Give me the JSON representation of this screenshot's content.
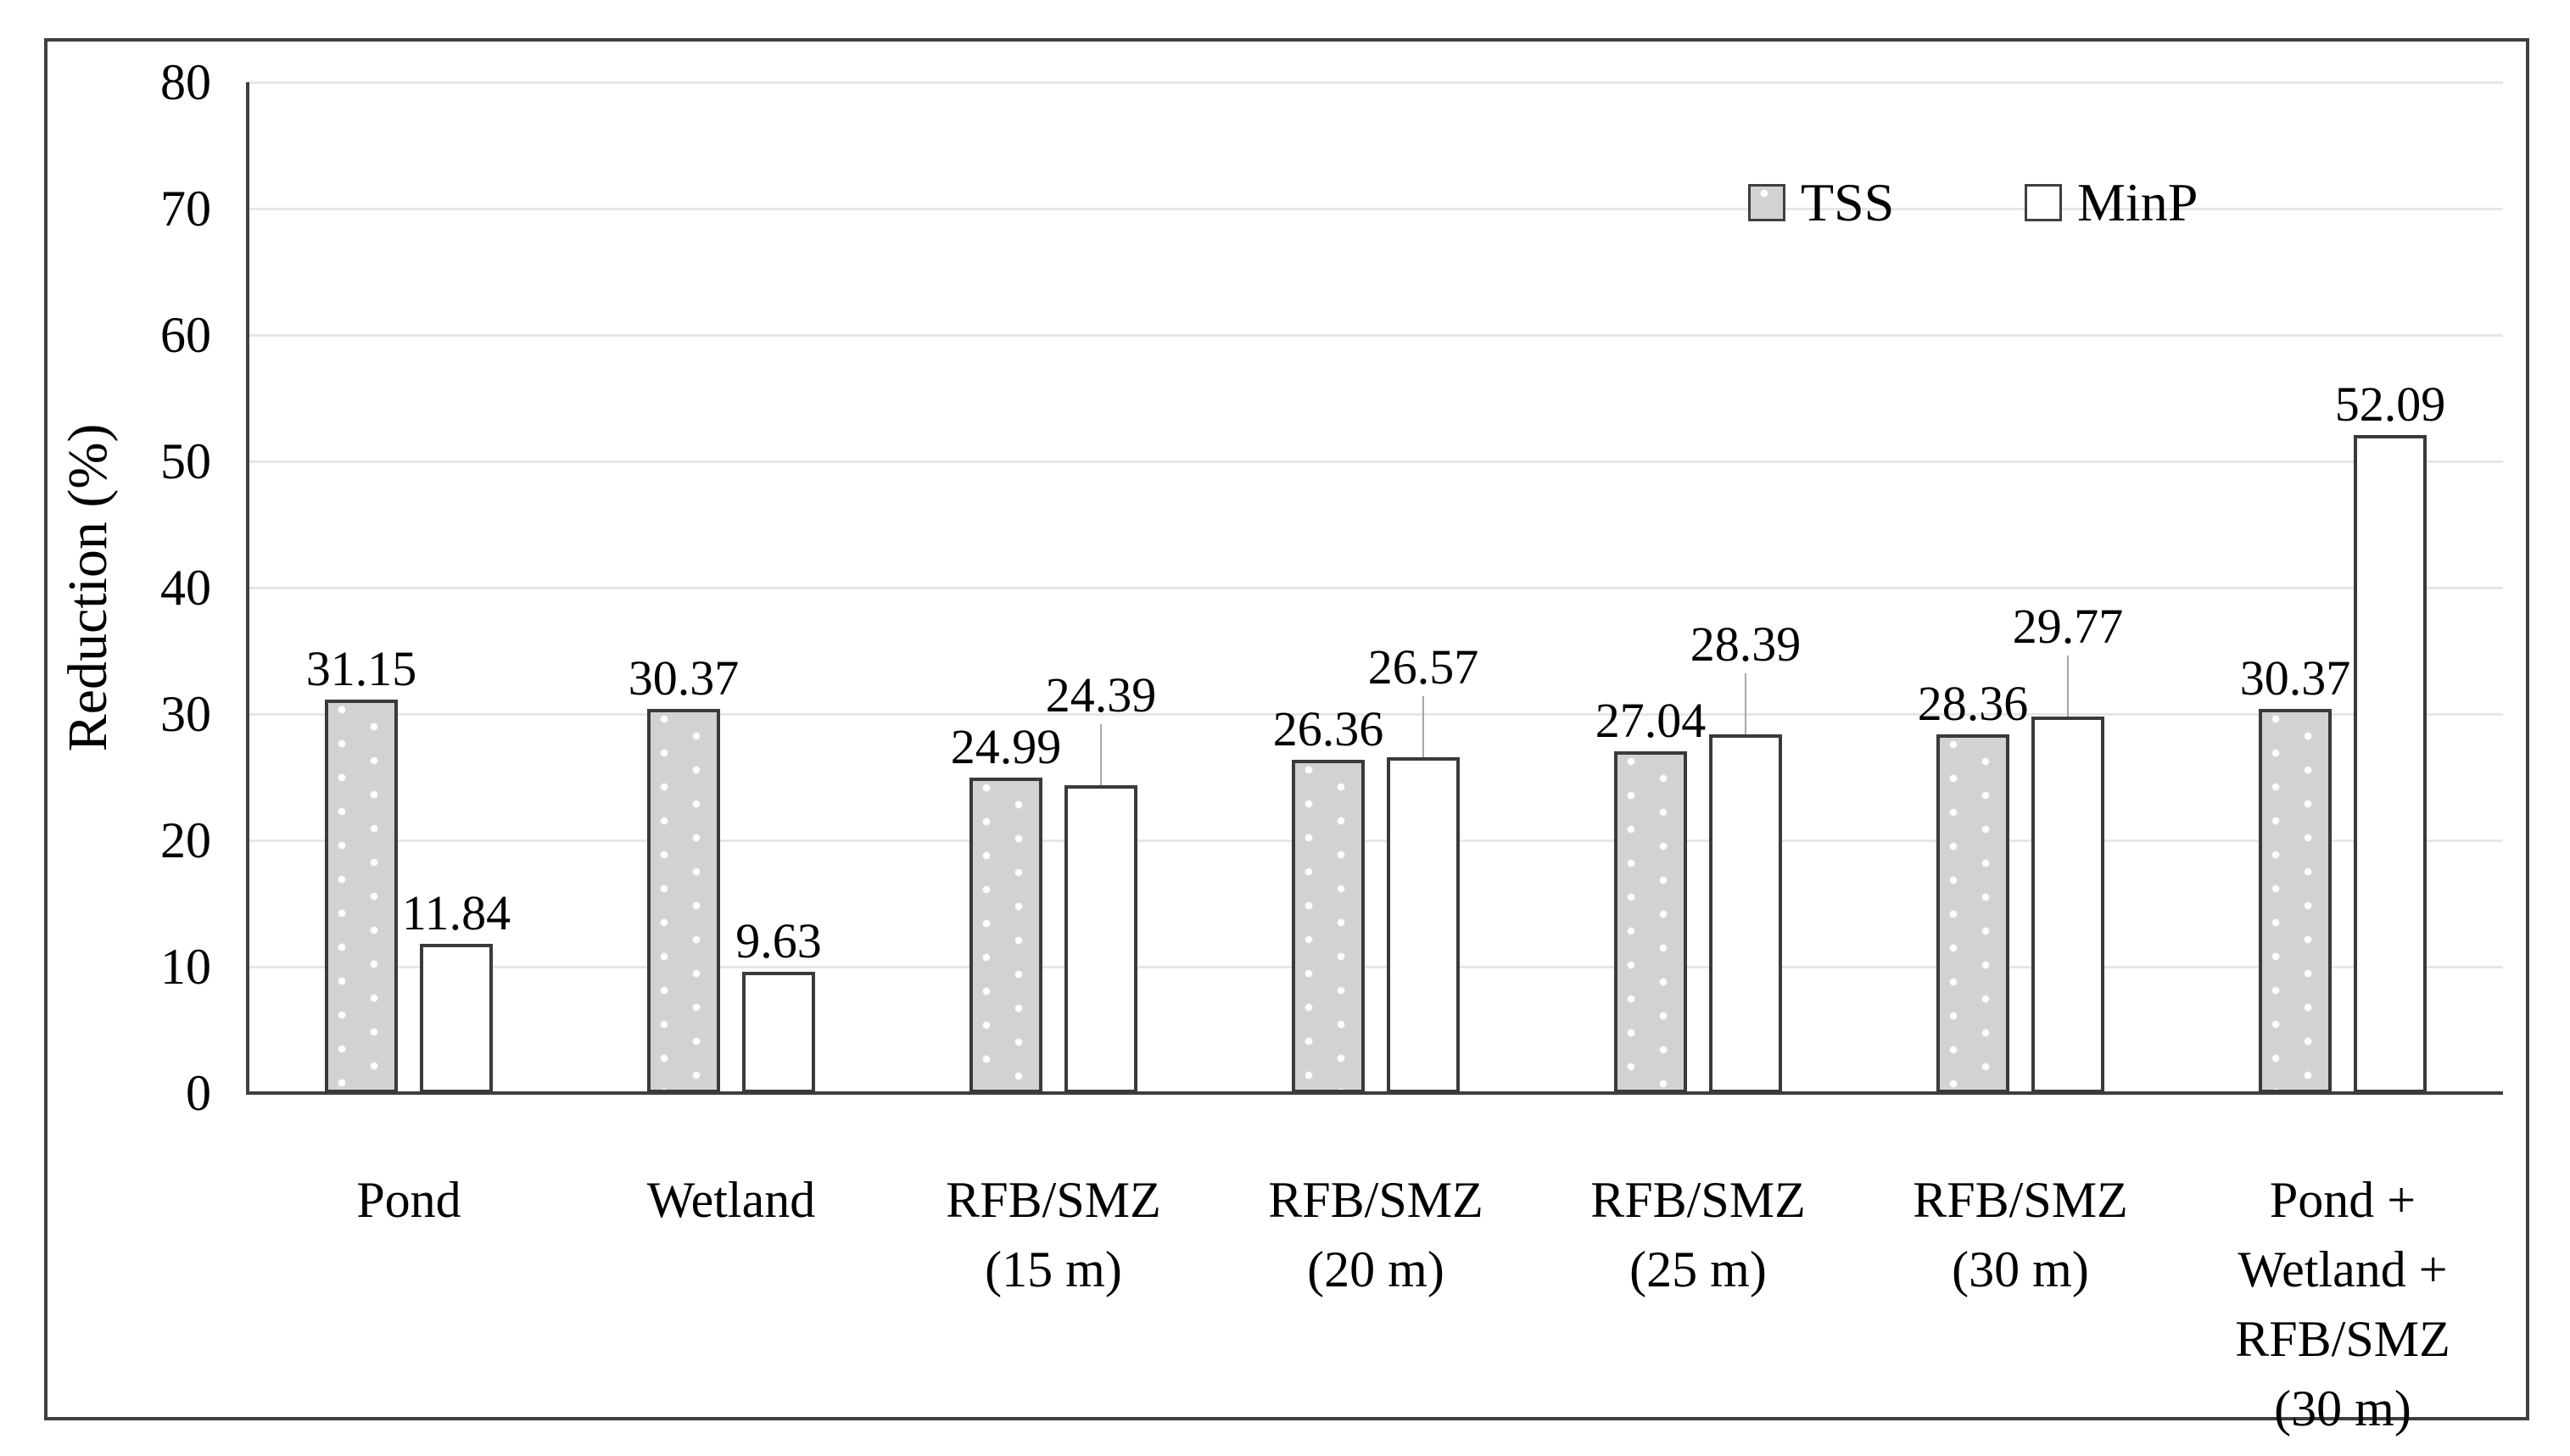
{
  "figure": {
    "background": "#ffffff",
    "border_color": "#3f3f3f"
  },
  "chart_data": {
    "type": "bar",
    "title": "",
    "xlabel": "",
    "ylabel": "Reduction (%)",
    "ylim": [
      0,
      80
    ],
    "yticks": [
      0,
      10,
      20,
      30,
      40,
      50,
      60,
      70,
      80
    ],
    "grid": "horizontal",
    "legend_position": "top-right-inside",
    "legend": [
      "TSS",
      "MinP"
    ],
    "categories": [
      "Pond",
      "Wetland",
      "RFB/SMZ\n(15 m)",
      "RFB/SMZ\n(20 m)",
      "RFB/SMZ\n(25 m)",
      "RFB/SMZ\n(30 m)",
      "Pond +\nWetland +\nRFB/SMZ\n(30 m)"
    ],
    "series": [
      {
        "name": "TSS",
        "values": [
          31.15,
          30.37,
          24.99,
          26.36,
          27.04,
          28.36,
          30.37
        ],
        "fill": "#d3d1d1",
        "pattern": "white-dots",
        "border": "#3a3a3a"
      },
      {
        "name": "MinP",
        "values": [
          11.84,
          9.63,
          24.39,
          26.57,
          28.39,
          29.77,
          52.09
        ],
        "fill": "#ffffff",
        "pattern": "none",
        "border": "#3a3a3a"
      }
    ],
    "data_labels": true,
    "colors": {
      "gridline": "#e6e6e6",
      "axis": "#3f3f3f",
      "leader_line": "#a6a6a6",
      "text": "#000000"
    }
  }
}
